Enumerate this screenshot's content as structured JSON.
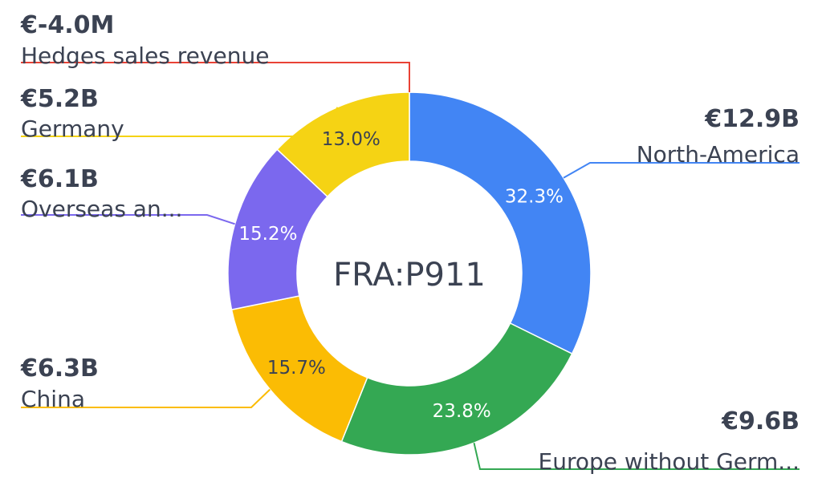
{
  "chart_data": {
    "type": "pie",
    "variant": "donut",
    "center_label": "FRA:P911",
    "slices": [
      {
        "name": "North-America",
        "value_label": "€12.9B",
        "percent": 32.3,
        "percent_label": "32.3%",
        "color": "#4285f4",
        "label_color": "#ffffff"
      },
      {
        "name": "Europe without Germ...",
        "value_label": "€9.6B",
        "percent": 23.8,
        "percent_label": "23.8%",
        "color": "#34a853",
        "label_color": "#ffffff"
      },
      {
        "name": "China",
        "value_label": "€6.3B",
        "percent": 15.7,
        "percent_label": "15.7%",
        "color": "#fbbc04",
        "label_color": "#3b4252"
      },
      {
        "name": "Overseas an...",
        "value_label": "€6.1B",
        "percent": 15.2,
        "percent_label": "15.2%",
        "color": "#7b68ee",
        "label_color": "#ffffff"
      },
      {
        "name": "Germany",
        "value_label": "€5.2B",
        "percent": 13.0,
        "percent_label": "13.0%",
        "color": "#f5d314",
        "label_color": "#3b4252"
      },
      {
        "name": "Hedges sales revenue",
        "value_label": "€-4.0M",
        "percent": 0.0,
        "percent_label": "",
        "color": "#e94235",
        "label_color": "#3b4252"
      }
    ]
  }
}
